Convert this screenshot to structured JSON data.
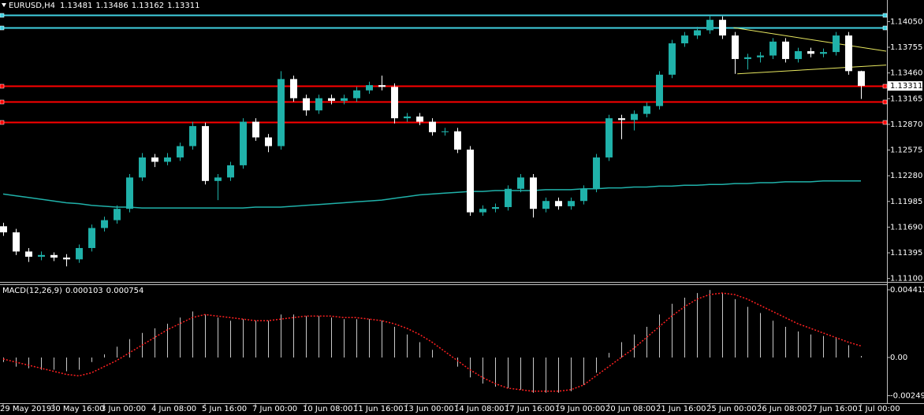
{
  "chart_data": [
    {
      "type": "candlestick",
      "symbol": "EURUSD,H4",
      "categories": [
        "29 May 2019",
        null,
        null,
        null,
        "30 May 16:00",
        null,
        null,
        null,
        "3 Jun 00:00",
        null,
        null,
        null,
        "4 Jun 08:00",
        null,
        null,
        null,
        "5 Jun 16:00",
        null,
        null,
        null,
        "7 Jun 00:00",
        null,
        null,
        null,
        "10 Jun 08:00",
        null,
        null,
        null,
        "11 Jun 16:00",
        null,
        null,
        null,
        "13 Jun 00:00",
        null,
        null,
        null,
        "14 Jun 08:00",
        null,
        null,
        null,
        "17 Jun 16:00",
        null,
        null,
        null,
        "19 Jun 00:00",
        null,
        null,
        null,
        "20 Jun 08:00",
        null,
        null,
        null,
        "21 Jun 16:00",
        null,
        null,
        null,
        "25 Jun 00:00",
        null,
        null,
        null,
        "26 Jun 08:00",
        null,
        null,
        null,
        "27 Jun 16:00",
        null,
        null,
        null,
        "1 Jul 00:00"
      ],
      "candles": [
        [
          1.117,
          1.1174,
          1.1159,
          1.1163
        ],
        [
          1.1163,
          1.1167,
          1.1137,
          1.1141
        ],
        [
          1.1141,
          1.1145,
          1.1129,
          1.1135
        ],
        [
          1.1135,
          1.1141,
          1.1131,
          1.1137
        ],
        [
          1.1137,
          1.114,
          1.113,
          1.1134
        ],
        [
          1.1134,
          1.1138,
          1.1124,
          1.1132
        ],
        [
          1.1132,
          1.1149,
          1.1128,
          1.1145
        ],
        [
          1.1145,
          1.1172,
          1.1141,
          1.1168
        ],
        [
          1.1168,
          1.1181,
          1.1164,
          1.1177
        ],
        [
          1.1177,
          1.1194,
          1.1173,
          1.119
        ],
        [
          1.119,
          1.123,
          1.1186,
          1.1226
        ],
        [
          1.1226,
          1.1254,
          1.1222,
          1.1249
        ],
        [
          1.1249,
          1.1253,
          1.1238,
          1.1244
        ],
        [
          1.1244,
          1.1254,
          1.124,
          1.1249
        ],
        [
          1.1249,
          1.1266,
          1.1245,
          1.1262
        ],
        [
          1.1262,
          1.129,
          1.1258,
          1.1285
        ],
        [
          1.1285,
          1.1289,
          1.1218,
          1.1222
        ],
        [
          1.1222,
          1.123,
          1.12,
          1.1226
        ],
        [
          1.1226,
          1.1244,
          1.1222,
          1.124
        ],
        [
          1.124,
          1.1294,
          1.1236,
          1.129
        ],
        [
          1.129,
          1.1294,
          1.1268,
          1.1272
        ],
        [
          1.1272,
          1.1276,
          1.1255,
          1.1262
        ],
        [
          1.1262,
          1.1348,
          1.1258,
          1.1339
        ],
        [
          1.1339,
          1.1343,
          1.1313,
          1.1317
        ],
        [
          1.1317,
          1.1321,
          1.1297,
          1.1303
        ],
        [
          1.1303,
          1.1321,
          1.1299,
          1.1317
        ],
        [
          1.1317,
          1.1321,
          1.131,
          1.1314
        ],
        [
          1.1314,
          1.1321,
          1.131,
          1.1317
        ],
        [
          1.1317,
          1.133,
          1.1313,
          1.1326
        ],
        [
          1.1326,
          1.1336,
          1.1322,
          1.1332
        ],
        [
          1.1332,
          1.1343,
          1.1326,
          1.133
        ],
        [
          1.133,
          1.1334,
          1.1288,
          1.1294
        ],
        [
          1.1294,
          1.13,
          1.129,
          1.1296
        ],
        [
          1.1296,
          1.13,
          1.1286,
          1.129
        ],
        [
          1.129,
          1.1294,
          1.1274,
          1.1278
        ],
        [
          1.1278,
          1.1283,
          1.1274,
          1.1279
        ],
        [
          1.1279,
          1.1283,
          1.1254,
          1.1258
        ],
        [
          1.1258,
          1.1262,
          1.1182,
          1.1186
        ],
        [
          1.1186,
          1.1194,
          1.1182,
          1.119
        ],
        [
          1.119,
          1.1196,
          1.1186,
          1.1192
        ],
        [
          1.1192,
          1.1217,
          1.1188,
          1.1213
        ],
        [
          1.1213,
          1.123,
          1.1209,
          1.1226
        ],
        [
          1.1226,
          1.123,
          1.118,
          1.119
        ],
        [
          1.119,
          1.1203,
          1.1186,
          1.1199
        ],
        [
          1.1199,
          1.1203,
          1.1189,
          1.1193
        ],
        [
          1.1193,
          1.1203,
          1.1189,
          1.1199
        ],
        [
          1.1199,
          1.1217,
          1.1195,
          1.1213
        ],
        [
          1.1213,
          1.1253,
          1.1209,
          1.1249
        ],
        [
          1.1249,
          1.1298,
          1.1245,
          1.1294
        ],
        [
          1.1294,
          1.1298,
          1.127,
          1.1292
        ],
        [
          1.1292,
          1.1303,
          1.128,
          1.1299
        ],
        [
          1.1299,
          1.1312,
          1.1295,
          1.1308
        ],
        [
          1.1308,
          1.1348,
          1.1304,
          1.1344
        ],
        [
          1.1344,
          1.1384,
          1.134,
          1.138
        ],
        [
          1.138,
          1.1393,
          1.1376,
          1.1389
        ],
        [
          1.1389,
          1.1399,
          1.1385,
          1.1395
        ],
        [
          1.1395,
          1.1412,
          1.1391,
          1.1407
        ],
        [
          1.1407,
          1.1411,
          1.1385,
          1.1389
        ],
        [
          1.1389,
          1.1393,
          1.1345,
          1.1362
        ],
        [
          1.1362,
          1.1368,
          1.135,
          1.1364
        ],
        [
          1.1364,
          1.137,
          1.1358,
          1.1366
        ],
        [
          1.1366,
          1.1386,
          1.1362,
          1.1382
        ],
        [
          1.1382,
          1.1386,
          1.1358,
          1.1362
        ],
        [
          1.1362,
          1.1375,
          1.1358,
          1.1371
        ],
        [
          1.1371,
          1.1375,
          1.1364,
          1.1368
        ],
        [
          1.1368,
          1.1374,
          1.1364,
          1.137
        ],
        [
          1.137,
          1.1393,
          1.1366,
          1.1389
        ],
        [
          1.1389,
          1.1393,
          1.1344,
          1.13481
        ],
        [
          1.13481,
          1.13486,
          1.13162,
          1.13311
        ]
      ],
      "up_color": "#20b2aa",
      "down_color": "#ffffff",
      "ma": {
        "color": "#20b2aa",
        "values": [
          1.1207,
          1.1205,
          1.1203,
          1.1201,
          1.1199,
          1.1197,
          1.1196,
          1.1194,
          1.1193,
          1.1192,
          1.1192,
          1.1191,
          1.1191,
          1.1191,
          1.1191,
          1.1191,
          1.1191,
          1.1191,
          1.1191,
          1.1191,
          1.1192,
          1.1192,
          1.1192,
          1.1193,
          1.1194,
          1.1195,
          1.1196,
          1.1197,
          1.1198,
          1.1199,
          1.12,
          1.1202,
          1.1204,
          1.1206,
          1.1207,
          1.1208,
          1.1209,
          1.121,
          1.121,
          1.1211,
          1.1211,
          1.1211,
          1.1211,
          1.1212,
          1.1212,
          1.1212,
          1.1213,
          1.1213,
          1.1214,
          1.1214,
          1.1215,
          1.1215,
          1.1216,
          1.1216,
          1.1217,
          1.1217,
          1.1218,
          1.1218,
          1.1219,
          1.1219,
          1.122,
          1.122,
          1.1221,
          1.1221,
          1.1221,
          1.1222,
          1.1222,
          1.1222,
          1.1222
        ]
      },
      "levels": [
        {
          "value": 1.1413,
          "color": "#40d0e0"
        },
        {
          "value": 1.1398,
          "color": "#40d0e0"
        },
        {
          "value": 1.1331,
          "color": "#ff0000"
        },
        {
          "value": 1.1313,
          "color": "#ff0000"
        },
        {
          "value": 1.129,
          "color": "#ff0000"
        }
      ],
      "trendlines": [
        {
          "x": [
            57.9,
            70
          ],
          "y": [
            1.1398,
            1.1371
          ],
          "color": "#e8e860"
        },
        {
          "x": [
            58.2,
            70
          ],
          "y": [
            1.1345,
            1.1355
          ],
          "color": "#e8e860"
        }
      ],
      "xlim": [
        -0.25,
        70.06
      ],
      "ylim": [
        1.1107,
        1.1418
      ],
      "yticks": [
        {
          "value": 1.1405,
          "label": "1.14050"
        },
        1.13755,
        {
          "value": 1.1346,
          "label": "1.13460"
        },
        1.13165,
        {
          "value": 1.1287,
          "label": "1.12870"
        },
        1.12575,
        {
          "value": 1.1228,
          "label": "1.12280"
        },
        1.11985,
        {
          "value": 1.1169,
          "label": "1.11690"
        },
        1.11395,
        {
          "value": 1.111,
          "label": "1.11100"
        }
      ]
    },
    {
      "type": "macd",
      "title": "MACD(12,26,9)",
      "histogram": {
        "color": "#c8c8c8",
        "values": [
          -0.0003,
          -0.0006,
          -0.0007,
          -0.0008,
          -0.0008,
          -0.0009,
          -0.0008,
          -0.0003,
          0.0002,
          0.0007,
          0.0012,
          0.0016,
          0.0019,
          0.0022,
          0.0026,
          0.003,
          0.0028,
          0.0026,
          0.0024,
          0.0025,
          0.0024,
          0.0024,
          0.0028,
          0.0028,
          0.0027,
          0.0027,
          0.0026,
          0.0025,
          0.0025,
          0.0025,
          0.0024,
          0.002,
          0.0015,
          0.001,
          0.0005,
          0.0,
          -0.0006,
          -0.0013,
          -0.0017,
          -0.0019,
          -0.002,
          -0.0021,
          -0.0023,
          -0.0023,
          -0.0023,
          -0.0022,
          -0.0018,
          -0.001,
          0.0003,
          0.001,
          0.0015,
          0.002,
          0.0028,
          0.0035,
          0.0039,
          0.0042,
          0.0044,
          0.0042,
          0.0038,
          0.0033,
          0.0029,
          0.0024,
          0.002,
          0.0017,
          0.0015,
          0.0014,
          0.0013,
          0.0008,
          0.000103
        ]
      },
      "signal": {
        "color": "#ff2020",
        "values": [
          -0.0001,
          -0.0003,
          -0.0005,
          -0.0007,
          -0.0009,
          -0.0011,
          -0.0012,
          -0.001,
          -0.0006,
          -0.0002,
          0.0003,
          0.0008,
          0.0013,
          0.0018,
          0.0022,
          0.0026,
          0.0028,
          0.0027,
          0.0026,
          0.0025,
          0.0024,
          0.0024,
          0.0025,
          0.0026,
          0.0027,
          0.0027,
          0.0027,
          0.0026,
          0.0026,
          0.0025,
          0.0024,
          0.0022,
          0.0019,
          0.0015,
          0.001,
          0.0004,
          -0.0002,
          -0.0008,
          -0.0013,
          -0.0017,
          -0.002,
          -0.0021,
          -0.0022,
          -0.0022,
          -0.0022,
          -0.0021,
          -0.0018,
          -0.0012,
          -0.0006,
          0.0,
          0.0006,
          0.0013,
          0.002,
          0.0027,
          0.0033,
          0.0038,
          0.0041,
          0.0042,
          0.0041,
          0.0038,
          0.0034,
          0.003,
          0.0026,
          0.0022,
          0.0019,
          0.0016,
          0.0013,
          0.001,
          0.000754
        ]
      },
      "ylim": [
        -0.00298,
        0.00472
      ],
      "yticks": [
        0.004412,
        {
          "value": 0,
          "label": "0.00"
        },
        -0.00249
      ]
    }
  ]
}
